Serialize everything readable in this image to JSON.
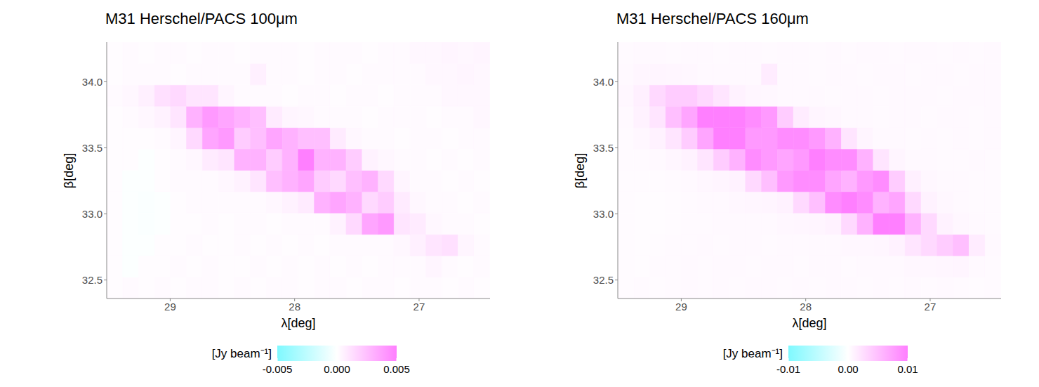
{
  "chart_data": [
    {
      "type": "heatmap",
      "title": "M31 Herschel/PACS 100μm",
      "x_label": "λ[deg]",
      "y_label": "β[deg]",
      "xlim": [
        29.51,
        26.43
      ],
      "ylim": [
        32.36,
        34.3
      ],
      "xticks": [
        29,
        28,
        27
      ],
      "yticks": [
        32.5,
        {
          "value": 33,
          "label": "33.0"
        },
        33.5,
        {
          "value": 34,
          "label": "34.0"
        }
      ],
      "grid": false,
      "x": [
        29.446,
        29.318,
        29.189,
        29.061,
        28.933,
        28.805,
        28.676,
        28.548,
        28.42,
        28.291,
        28.163,
        28.035,
        27.907,
        27.778,
        27.65,
        27.522,
        27.393,
        27.265,
        27.137,
        27.008,
        26.88,
        26.752,
        26.623,
        26.495
      ],
      "y": [
        32.441,
        32.603,
        32.764,
        32.926,
        33.088,
        33.249,
        33.411,
        33.573,
        33.734,
        33.896,
        34.058,
        34.219
      ],
      "z": [
        [
          0.0001,
          0.0002,
          0.0001,
          0.0002,
          0.0001,
          0.0002,
          0.0002,
          0.0001,
          0.0002,
          0.0001,
          0.0002,
          0.0002,
          0.0001,
          0.0002,
          0.0002,
          0.0001,
          0.0002,
          0.0002,
          0.0001,
          0.0002,
          0.0002,
          0.0001,
          0.0002,
          0.0001
        ],
        [
          0.0001,
          -0.0001,
          0.0001,
          0.0001,
          0.0002,
          0.0001,
          0.0002,
          0.0001,
          0.0001,
          0.0002,
          0.0001,
          0.0002,
          0.0001,
          0.0002,
          0.0001,
          0.0002,
          0.0001,
          0.0002,
          0.0002,
          0.0002,
          0.0004,
          0.0002,
          0.0001,
          0.0002
        ],
        [
          0.0001,
          -0.0001,
          -0.0001,
          0.0001,
          0.0001,
          0.0002,
          0.0001,
          0.0001,
          0.0002,
          0.0001,
          0.0002,
          0.0001,
          0.0002,
          0.0001,
          0.0002,
          0.0002,
          0.0002,
          0.0002,
          0.0003,
          0.0006,
          0.001,
          0.0012,
          0.0004,
          0.0002
        ],
        [
          0.0001,
          -0.0001,
          -0.0002,
          -0.0001,
          0.0001,
          0.0001,
          0.0002,
          0.0001,
          0.0002,
          0.0002,
          0.0001,
          0.0002,
          0.0002,
          0.0002,
          0.0005,
          0.0015,
          0.0035,
          0.004,
          0.001,
          0.0008,
          0.0003,
          0.0002,
          0.0002,
          0.0001
        ],
        [
          0.0001,
          -0.0001,
          -0.0002,
          -0.0001,
          0.0001,
          0.0002,
          0.0002,
          0.0002,
          0.0002,
          0.0002,
          0.0003,
          0.0005,
          0.0008,
          0.003,
          0.0035,
          0.003,
          0.0015,
          0.002,
          0.0008,
          0.0003,
          0.0002,
          0.0002,
          0.0001,
          0.0002
        ],
        [
          0.0001,
          -0.0001,
          -0.0001,
          0.0001,
          0.0002,
          0.0002,
          0.0002,
          0.0003,
          0.0005,
          0.001,
          0.0025,
          0.003,
          0.0035,
          0.002,
          0.0015,
          0.0025,
          0.003,
          0.0015,
          0.0004,
          0.0002,
          0.0002,
          0.0001,
          0.0002,
          0.0001
        ],
        [
          0.0001,
          0.0001,
          -0.0001,
          0.0001,
          0.0002,
          0.0003,
          0.0008,
          0.001,
          0.003,
          0.003,
          0.002,
          0.003,
          0.005,
          0.003,
          0.003,
          0.002,
          0.0005,
          0.0003,
          0.0002,
          0.0002,
          0.0001,
          0.0002,
          0.0001,
          0.0002
        ],
        [
          0.0001,
          0.0001,
          0.0001,
          0.0002,
          0.0004,
          0.0015,
          0.0035,
          0.004,
          0.002,
          0.0025,
          0.0035,
          0.003,
          0.0025,
          0.0025,
          0.0008,
          0.0003,
          0.0002,
          0.0002,
          0.0001,
          0.0002,
          0.0002,
          0.0001,
          0.0002,
          0.0002
        ],
        [
          0.0001,
          0.0002,
          0.0003,
          0.0005,
          0.001,
          0.003,
          0.004,
          0.0035,
          0.003,
          0.0025,
          0.0008,
          0.0004,
          0.0003,
          0.0002,
          0.0002,
          0.0002,
          0.0001,
          0.0002,
          0.0002,
          0.0002,
          0.0001,
          0.0002,
          0.0002,
          0.0003
        ],
        [
          0.0002,
          0.0003,
          0.0006,
          0.0012,
          0.0015,
          0.001,
          0.001,
          0.0004,
          0.0002,
          0.0002,
          0.0002,
          0.0001,
          0.0002,
          0.0002,
          0.0001,
          0.0002,
          0.0002,
          0.0001,
          0.0002,
          0.0002,
          0.0002,
          0.0003,
          0.0003,
          0.0003
        ],
        [
          0.0001,
          0.0002,
          0.0002,
          0.0002,
          0.0001,
          0.0002,
          0.0002,
          0.0002,
          0.0002,
          0.0006,
          0.0002,
          0.0002,
          0.0001,
          0.0002,
          0.0002,
          0.0001,
          0.0002,
          0.0002,
          0.0002,
          0.0002,
          0.0003,
          0.0003,
          0.0004,
          0.0003
        ],
        [
          0.0001,
          0.0002,
          0.0001,
          0.0002,
          0.0002,
          0.0001,
          0.0002,
          0.0002,
          0.0001,
          0.0002,
          0.0002,
          0.0002,
          0.0001,
          0.0002,
          0.0002,
          0.0002,
          0.0001,
          0.0002,
          0.0002,
          0.0003,
          0.0003,
          0.0004,
          0.0003,
          0.0004
        ]
      ],
      "colorbar": {
        "label": "[Jy beam⁻¹]",
        "range": [
          -0.005,
          0.005
        ],
        "ticks": [
          -0.005,
          {
            "value": 0,
            "label": "0.000"
          },
          0.005
        ]
      }
    },
    {
      "type": "heatmap",
      "title": "M31 Herschel/PACS 160μm",
      "x_label": "λ[deg]",
      "y_label": "β[deg]",
      "xlim": [
        29.51,
        26.43
      ],
      "ylim": [
        32.36,
        34.3
      ],
      "xticks": [
        29,
        28,
        27
      ],
      "yticks": [
        32.5,
        {
          "value": 33,
          "label": "33.0"
        },
        33.5,
        {
          "value": 34,
          "label": "34.0"
        }
      ],
      "grid": false,
      "x": [
        29.446,
        29.318,
        29.189,
        29.061,
        28.933,
        28.805,
        28.676,
        28.548,
        28.42,
        28.291,
        28.163,
        28.035,
        27.907,
        27.778,
        27.65,
        27.522,
        27.393,
        27.265,
        27.137,
        27.008,
        26.88,
        26.752,
        26.623,
        26.495
      ],
      "y": [
        32.441,
        32.603,
        32.764,
        32.926,
        33.088,
        33.249,
        33.411,
        33.573,
        33.734,
        33.896,
        34.058,
        34.219
      ],
      "z": [
        [
          0.0003,
          0.0004,
          0.0003,
          0.0004,
          0.0005,
          0.0004,
          0.0005,
          0.0004,
          0.0005,
          0.0005,
          0.0004,
          0.0005,
          0.0004,
          0.0005,
          0.0005,
          0.0004,
          0.0005,
          0.0004,
          0.0005,
          0.0004,
          0.0005,
          0.0004,
          0.0003,
          0.0004
        ],
        [
          0.0003,
          0.0002,
          0.0004,
          0.0004,
          0.0005,
          0.0004,
          0.0005,
          0.0005,
          0.0004,
          0.0005,
          0.0005,
          0.0004,
          0.0005,
          0.0005,
          0.0004,
          0.0005,
          0.0005,
          0.0005,
          0.0006,
          0.0006,
          0.0007,
          0.0008,
          0.0005,
          0.0004
        ],
        [
          0.0003,
          0.0002,
          0.0003,
          0.0004,
          0.0004,
          0.0005,
          0.0004,
          0.0005,
          0.0005,
          0.0004,
          0.0005,
          0.0005,
          0.0005,
          0.0005,
          0.0006,
          0.0006,
          0.0007,
          0.001,
          0.002,
          0.003,
          0.004,
          0.005,
          0.0015,
          0.0005
        ],
        [
          0.0003,
          0.0002,
          0.0002,
          0.0003,
          0.0004,
          0.0004,
          0.0005,
          0.0005,
          0.0005,
          0.0005,
          0.0006,
          0.0007,
          0.0008,
          0.001,
          0.003,
          0.006,
          0.01,
          0.01,
          0.006,
          0.003,
          0.001,
          0.0006,
          0.0005,
          0.0004
        ],
        [
          0.0003,
          0.0002,
          0.0002,
          0.0003,
          0.0004,
          0.0005,
          0.0005,
          0.0006,
          0.0007,
          0.0008,
          0.001,
          0.003,
          0.005,
          0.009,
          0.01,
          0.009,
          0.006,
          0.007,
          0.003,
          0.001,
          0.0006,
          0.0005,
          0.0004,
          0.0004
        ],
        [
          0.0003,
          0.0003,
          0.0003,
          0.0004,
          0.0005,
          0.0006,
          0.0008,
          0.001,
          0.003,
          0.005,
          0.008,
          0.009,
          0.009,
          0.007,
          0.006,
          0.008,
          0.009,
          0.004,
          0.0012,
          0.0006,
          0.0005,
          0.0005,
          0.0004,
          0.0004
        ],
        [
          0.0004,
          0.0004,
          0.0005,
          0.0007,
          0.001,
          0.002,
          0.004,
          0.006,
          0.009,
          0.008,
          0.007,
          0.008,
          0.01,
          0.009,
          0.009,
          0.006,
          0.002,
          0.0008,
          0.0005,
          0.0005,
          0.0004,
          0.0004,
          0.0005,
          0.0004
        ],
        [
          0.0004,
          0.0006,
          0.001,
          0.002,
          0.004,
          0.007,
          0.01,
          0.01,
          0.008,
          0.008,
          0.009,
          0.009,
          0.008,
          0.006,
          0.002,
          0.0008,
          0.0005,
          0.0005,
          0.0004,
          0.0005,
          0.0004,
          0.0005,
          0.0004,
          0.0005
        ],
        [
          0.0005,
          0.001,
          0.002,
          0.005,
          0.007,
          0.01,
          0.01,
          0.01,
          0.009,
          0.008,
          0.004,
          0.0015,
          0.0008,
          0.0006,
          0.0005,
          0.0005,
          0.0004,
          0.0005,
          0.0005,
          0.0004,
          0.0005,
          0.0005,
          0.0004,
          0.0005
        ],
        [
          0.0006,
          0.0012,
          0.003,
          0.004,
          0.004,
          0.003,
          0.002,
          0.001,
          0.0007,
          0.0006,
          0.0005,
          0.0005,
          0.0005,
          0.0004,
          0.0005,
          0.0005,
          0.0004,
          0.0005,
          0.0005,
          0.0005,
          0.0004,
          0.0005,
          0.0005,
          0.0005
        ],
        [
          0.0005,
          0.0007,
          0.0008,
          0.0007,
          0.0006,
          0.0005,
          0.0005,
          0.0005,
          0.0005,
          0.0015,
          0.0005,
          0.0005,
          0.0004,
          0.0005,
          0.0005,
          0.0004,
          0.0005,
          0.0005,
          0.0004,
          0.0005,
          0.0005,
          0.0004,
          0.0005,
          0.0005
        ],
        [
          0.0004,
          0.0005,
          0.0005,
          0.0004,
          0.0005,
          0.0005,
          0.0004,
          0.0005,
          0.0005,
          0.0004,
          0.0005,
          0.0005,
          0.0004,
          0.0005,
          0.0004,
          0.0005,
          0.0005,
          0.0004,
          0.0005,
          0.0005,
          0.0004,
          0.0005,
          0.0004,
          0.0005
        ]
      ],
      "colorbar": {
        "label": "[Jy beam⁻¹]",
        "range": [
          -0.01,
          0.01
        ],
        "ticks": [
          -0.01,
          {
            "value": 0,
            "label": "0.00"
          },
          0.01
        ]
      }
    }
  ]
}
